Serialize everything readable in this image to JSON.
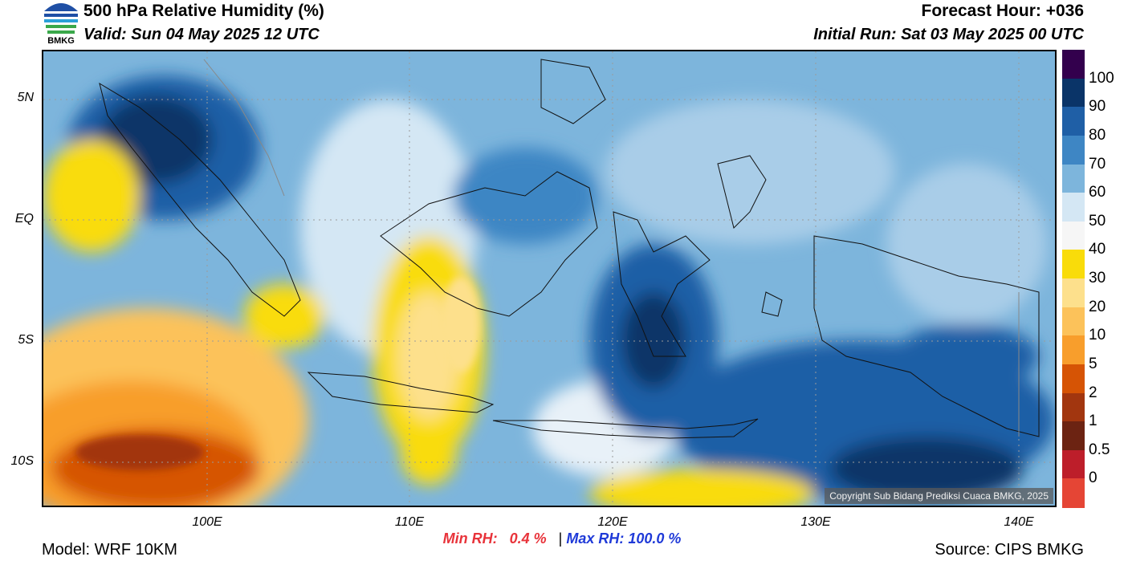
{
  "header": {
    "title": "500 hPa Relative Humidity (%)",
    "valid": "Valid: Sun 04 May 2025 12 UTC",
    "forecast_hour": "Forecast Hour: +036",
    "initial_run": "Initial Run: Sat 03 May 2025 00 UTC",
    "logo_text": "BMKG"
  },
  "map": {
    "lat_labels": [
      "5N",
      "EQ",
      "5S",
      "10S"
    ],
    "lon_labels": [
      "100E",
      "110E",
      "120E",
      "130E",
      "140E"
    ],
    "copyright": "Copyright Sub Bidang Prediksi Cuaca BMKG, 2025"
  },
  "colorbar": {
    "labels": [
      "100",
      "90",
      "80",
      "70",
      "60",
      "50",
      "40",
      "30",
      "20",
      "10",
      "5",
      "2",
      "1",
      "0.5",
      "0"
    ],
    "colors": [
      "#33004d",
      "#0a3468",
      "#1f5fa6",
      "#3e86c4",
      "#7db5dc",
      "#d4e7f4",
      "#f6f6f6",
      "#f9dc0a",
      "#fde08c",
      "#fcc25a",
      "#f89e2c",
      "#d65405",
      "#a2360f",
      "#6c2312",
      "#bd1e2a",
      "#e54535"
    ]
  },
  "stats": {
    "min_label": "Min RH:",
    "min_value": "0.4 %",
    "separator": "|",
    "max_label": "Max RH:",
    "max_value": "100.0 %"
  },
  "footer": {
    "model": "Model: WRF 10KM",
    "source": "Source: CIPS BMKG"
  }
}
